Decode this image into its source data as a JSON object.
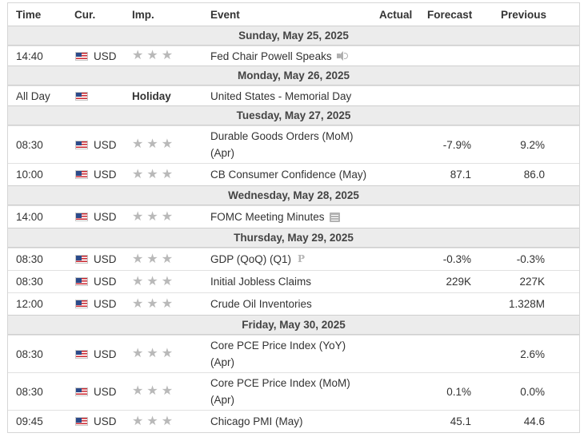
{
  "columns": {
    "time": "Time",
    "currency": "Cur.",
    "importance": "Imp.",
    "event": "Event",
    "actual": "Actual",
    "forecast": "Forecast",
    "previous": "Previous"
  },
  "days": [
    {
      "date": "Sunday, May 25, 2025",
      "events": [
        {
          "time": "14:40",
          "currency": "USD",
          "event": "Fed Chair Powell Speaks",
          "icon": "speaker-icon",
          "actual": "",
          "forecast": "",
          "previous": ""
        }
      ]
    },
    {
      "date": "Monday, May 26, 2025",
      "events": [
        {
          "time": "All Day",
          "currency": "",
          "importance": "Holiday",
          "event": "United States - Memorial Day"
        }
      ]
    },
    {
      "date": "Tuesday, May 27, 2025",
      "events": [
        {
          "time": "08:30",
          "currency": "USD",
          "event_line1": "Durable Goods Orders (MoM)",
          "event_line2": "(Apr)",
          "actual": "",
          "forecast": "-7.9%",
          "previous": "9.2%"
        },
        {
          "time": "10:00",
          "currency": "USD",
          "event": "CB Consumer Confidence (May)",
          "actual": "",
          "forecast": "87.1",
          "previous": "86.0"
        }
      ]
    },
    {
      "date": "Wednesday, May 28, 2025",
      "events": [
        {
          "time": "14:00",
          "currency": "USD",
          "event": "FOMC Meeting Minutes",
          "icon": "document-icon",
          "actual": "",
          "forecast": "",
          "previous": ""
        }
      ]
    },
    {
      "date": "Thursday, May 29, 2025",
      "events": [
        {
          "time": "08:30",
          "currency": "USD",
          "event": "GDP (QoQ) (Q1)",
          "icon": "preliminary-p-icon",
          "icon_text": "P",
          "actual": "",
          "forecast": "-0.3%",
          "previous": "-0.3%"
        },
        {
          "time": "08:30",
          "currency": "USD",
          "event": "Initial Jobless Claims",
          "actual": "",
          "forecast": "229K",
          "previous": "227K"
        },
        {
          "time": "12:00",
          "currency": "USD",
          "event": "Crude Oil Inventories",
          "actual": "",
          "forecast": "",
          "previous": "1.328M"
        }
      ]
    },
    {
      "date": "Friday, May 30, 2025",
      "events": [
        {
          "time": "08:30",
          "currency": "USD",
          "event_line1": "Core PCE Price Index (YoY)",
          "event_line2": "(Apr)",
          "actual": "",
          "forecast": "",
          "previous": "2.6%"
        },
        {
          "time": "08:30",
          "currency": "USD",
          "event_line1": "Core PCE Price Index (MoM)",
          "event_line2": "(Apr)",
          "actual": "",
          "forecast": "0.1%",
          "previous": "0.0%"
        },
        {
          "time": "09:45",
          "currency": "USD",
          "event": "Chicago PMI (May)",
          "actual": "",
          "forecast": "45.1",
          "previous": "44.6"
        }
      ]
    }
  ],
  "importance_stars": 3,
  "colors": {
    "day_bg": "#ececec",
    "star": "#b9b9b9",
    "border": "#d6d6d6"
  }
}
